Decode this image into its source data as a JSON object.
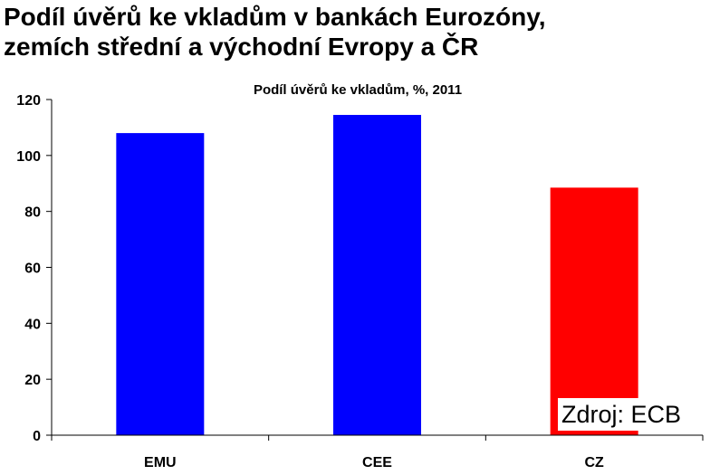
{
  "slide": {
    "title_line1": "Podíl úvěrů ke vkladům v bankách Eurozóny,",
    "title_line2": "zemích střední a východní Evropy a ČR",
    "source": "Zdroj: ECB"
  },
  "chart_data": {
    "type": "bar",
    "title": "Podíl úvěrů ke vkladům, %,  2011",
    "categories": [
      "EMU",
      "CEE",
      "CZ"
    ],
    "values": [
      108,
      114.5,
      88.5
    ],
    "colors": [
      "#0000ff",
      "#0000ff",
      "#ff0000"
    ],
    "ylim": [
      0,
      120
    ],
    "yticks": [
      0,
      20,
      40,
      60,
      80,
      100,
      120
    ],
    "xlabel": "",
    "ylabel": "",
    "grid": false,
    "legend": "none"
  }
}
